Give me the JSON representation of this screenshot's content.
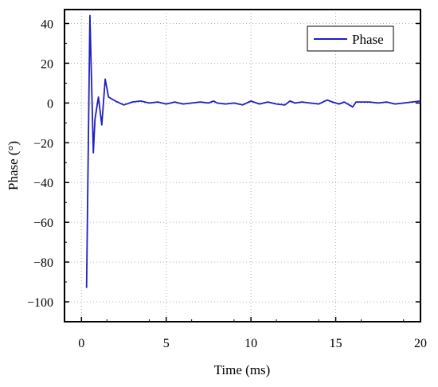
{
  "chart_data": {
    "type": "line",
    "xlabel": "Time (ms)",
    "ylabel": "Phase (°)",
    "xlim": [
      -1,
      20
    ],
    "ylim": [
      -110,
      47
    ],
    "x_ticks": [
      0,
      5,
      10,
      15,
      20
    ],
    "x_tick_labels": [
      "0",
      "5",
      "10",
      "15",
      "20"
    ],
    "y_ticks": [
      40,
      20,
      0,
      -20,
      -40,
      -60,
      -80,
      -100
    ],
    "y_tick_labels": [
      "40",
      "20",
      "0",
      "−20",
      "−40",
      "−60",
      "−80",
      "−100"
    ],
    "grid": true,
    "legend_position": "top-right",
    "series": [
      {
        "name": "Phase",
        "color": "#1f1fbf",
        "x": [
          0.3,
          0.5,
          0.7,
          0.8,
          1.0,
          1.2,
          1.4,
          1.6,
          2.0,
          2.5,
          3.0,
          3.5,
          4.0,
          4.5,
          5.0,
          5.5,
          6.0,
          6.5,
          7.0,
          7.5,
          7.8,
          8.0,
          8.5,
          9.0,
          9.5,
          10.0,
          10.5,
          11.0,
          11.5,
          12.0,
          12.3,
          12.6,
          13.0,
          13.5,
          14.0,
          14.5,
          14.8,
          15.2,
          15.5,
          15.8,
          16.0,
          16.2,
          16.5,
          17.0,
          17.5,
          18.0,
          18.5,
          19.0,
          19.5,
          20.0
        ],
        "values": [
          -93,
          44,
          -25,
          -8,
          3,
          -11,
          12,
          3,
          1,
          -1,
          0.5,
          1,
          0,
          0.5,
          -0.5,
          0.5,
          -0.5,
          0,
          0.5,
          0,
          1,
          0,
          -0.5,
          0,
          -1,
          1,
          -0.5,
          0.5,
          -0.5,
          -1,
          1,
          0,
          0.5,
          0,
          -0.5,
          1.5,
          0.5,
          -0.5,
          0.5,
          -1,
          -2,
          0.5,
          0.5,
          0.5,
          0,
          0.5,
          -0.5,
          0,
          0.5,
          1
        ]
      }
    ]
  }
}
